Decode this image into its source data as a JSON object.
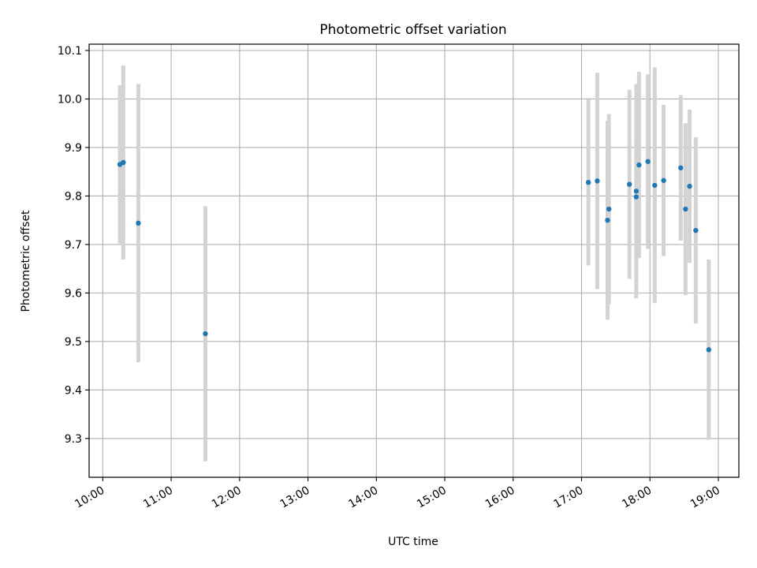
{
  "chart_data": {
    "type": "scatter",
    "title": "Photometric offset variation",
    "xlabel": "UTC time",
    "ylabel": "Photometric offset",
    "x_unit": "hours UTC",
    "xlim": [
      9.8,
      19.3
    ],
    "ylim": [
      9.22,
      10.113
    ],
    "grid": true,
    "x_ticks": [
      {
        "value": 10,
        "label": "10:00"
      },
      {
        "value": 11,
        "label": "11:00"
      },
      {
        "value": 12,
        "label": "12:00"
      },
      {
        "value": 13,
        "label": "13:00"
      },
      {
        "value": 14,
        "label": "14:00"
      },
      {
        "value": 15,
        "label": "15:00"
      },
      {
        "value": 16,
        "label": "16:00"
      },
      {
        "value": 17,
        "label": "17:00"
      },
      {
        "value": 18,
        "label": "18:00"
      },
      {
        "value": 19,
        "label": "19:00"
      }
    ],
    "y_ticks": [
      {
        "value": 9.3,
        "label": "9.3"
      },
      {
        "value": 9.4,
        "label": "9.4"
      },
      {
        "value": 9.5,
        "label": "9.5"
      },
      {
        "value": 9.6,
        "label": "9.6"
      },
      {
        "value": 9.7,
        "label": "9.7"
      },
      {
        "value": 9.8,
        "label": "9.8"
      },
      {
        "value": 9.9,
        "label": "9.9"
      },
      {
        "value": 10.0,
        "label": "10.0"
      },
      {
        "value": 10.1,
        "label": "10.1"
      }
    ],
    "marker_color": "#1f77b4",
    "errorbar_color": "#d3d3d3",
    "points": [
      {
        "x": 10.25,
        "y": 9.865,
        "yerr": 0.163
      },
      {
        "x": 10.3,
        "y": 9.869,
        "yerr": 0.2
      },
      {
        "x": 10.52,
        "y": 9.744,
        "yerr": 0.287
      },
      {
        "x": 11.5,
        "y": 9.516,
        "yerr": 0.263
      },
      {
        "x": 17.1,
        "y": 9.828,
        "yerr": 0.171
      },
      {
        "x": 17.23,
        "y": 9.831,
        "yerr": 0.223
      },
      {
        "x": 17.38,
        "y": 9.75,
        "yerr": 0.205
      },
      {
        "x": 17.4,
        "y": 9.773,
        "yerr": 0.196
      },
      {
        "x": 17.7,
        "y": 9.824,
        "yerr": 0.195
      },
      {
        "x": 17.8,
        "y": 9.798,
        "yerr": 0.116
      },
      {
        "x": 17.8,
        "y": 9.81,
        "yerr": 0.221
      },
      {
        "x": 17.84,
        "y": 9.864,
        "yerr": 0.192
      },
      {
        "x": 17.97,
        "y": 9.871,
        "yerr": 0.18
      },
      {
        "x": 18.07,
        "y": 9.822,
        "yerr": 0.243
      },
      {
        "x": 18.2,
        "y": 9.832,
        "yerr": 0.156
      },
      {
        "x": 18.45,
        "y": 9.858,
        "yerr": 0.15
      },
      {
        "x": 18.52,
        "y": 9.773,
        "yerr": 0.177
      },
      {
        "x": 18.58,
        "y": 9.82,
        "yerr": 0.158
      },
      {
        "x": 18.67,
        "y": 9.729,
        "yerr": 0.192
      },
      {
        "x": 18.86,
        "y": 9.483,
        "yerr": 0.186
      }
    ]
  }
}
